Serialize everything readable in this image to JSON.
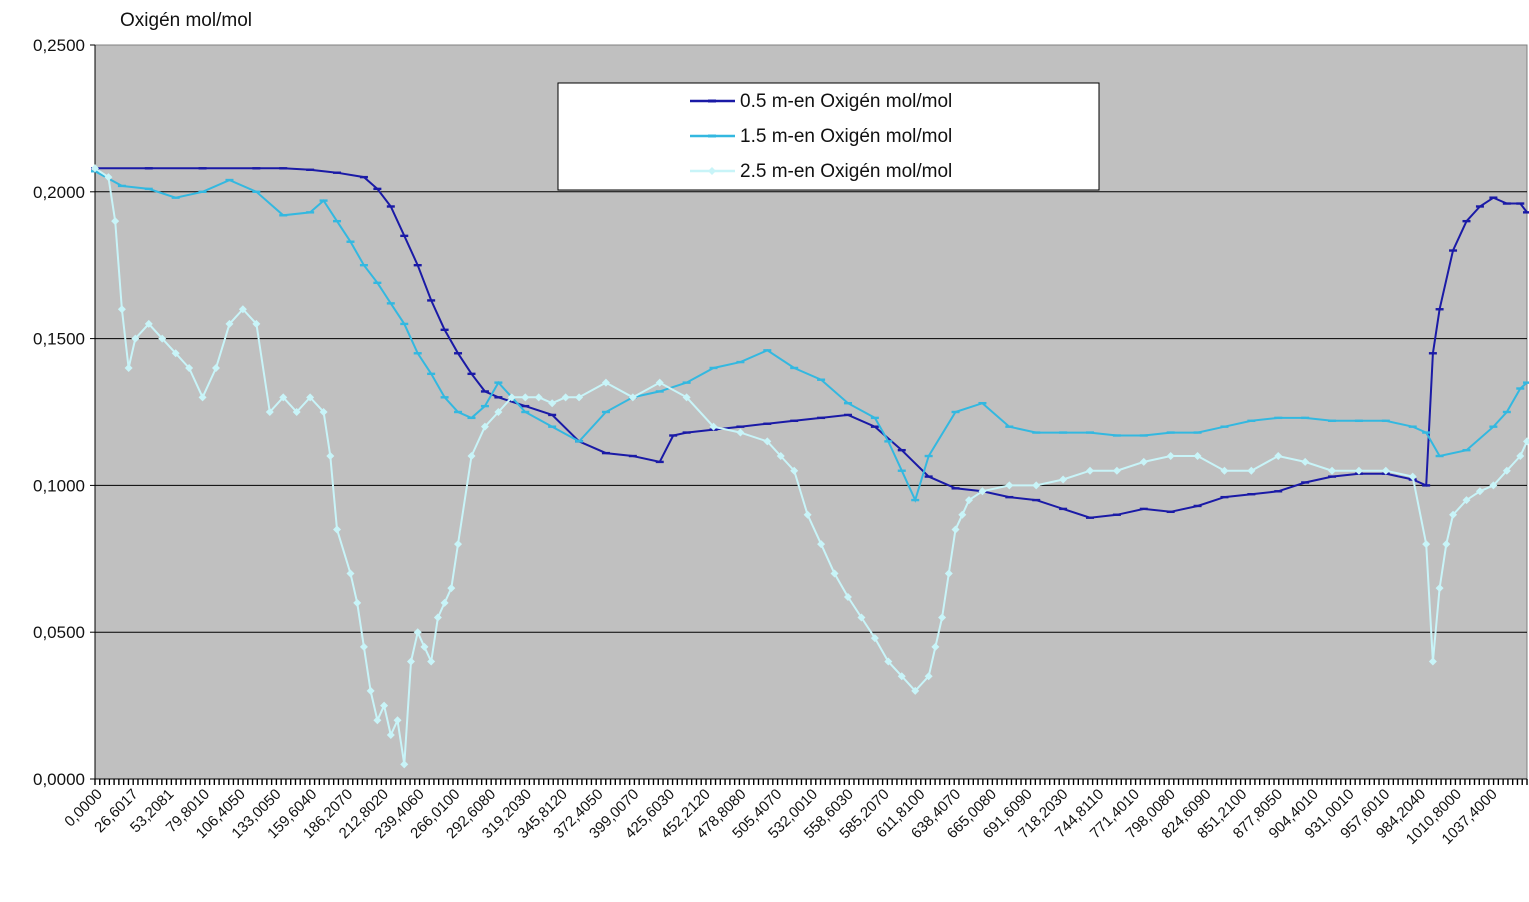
{
  "chart_data": {
    "type": "line",
    "ylabel": "Oxigén mol/mol",
    "ylim": [
      0,
      0.25
    ],
    "yticks": [
      "0,0000",
      "0,0500",
      "0,1000",
      "0,1500",
      "0,2000",
      "0,2500"
    ],
    "yticks_values": [
      0,
      0.05,
      0.1,
      0.15,
      0.2,
      0.25
    ],
    "xlim": [
      0,
      1065
    ],
    "xtick_labels": [
      "0,0000",
      "26,6017",
      "53,2081",
      "79,8010",
      "106,4050",
      "133,0050",
      "159,6040",
      "186,2070",
      "212,8020",
      "239,4060",
      "266,0100",
      "292,6080",
      "319,2030",
      "345,8120",
      "372,4050",
      "399,0070",
      "425,6030",
      "452,2120",
      "478,8080",
      "505,4070",
      "532,0010",
      "558,6030",
      "585,2070",
      "611,8100",
      "638,4070",
      "665,0080",
      "691,6090",
      "718,2030",
      "744,8110",
      "771,4010",
      "798,0080",
      "824,6090",
      "851,2100",
      "877,8050",
      "904,4010",
      "931,0010",
      "957,6010",
      "984,2040",
      "1010,8000",
      "1037,4000"
    ],
    "xtick_values": [
      0,
      26.6017,
      53.2081,
      79.801,
      106.405,
      133.005,
      159.604,
      186.207,
      212.802,
      239.406,
      266.01,
      292.608,
      319.203,
      345.812,
      372.405,
      399.007,
      425.603,
      452.212,
      478.808,
      505.407,
      532.001,
      558.603,
      585.207,
      611.81,
      638.407,
      665.008,
      691.609,
      718.203,
      744.811,
      771.401,
      798.008,
      824.609,
      851.21,
      877.805,
      904.401,
      931.001,
      957.601,
      984.204,
      1010.8,
      1037.4
    ],
    "grid": "horizontal",
    "legend_position": "top-center",
    "background": "#c0c0c0",
    "series": [
      {
        "name": "0.5 m-en Oxigén mol/mol",
        "color": "#1a1aa6",
        "x": [
          0,
          40,
          80,
          120,
          140,
          160,
          180,
          200,
          210,
          220,
          230,
          240,
          250,
          260,
          270,
          280,
          290,
          300,
          320,
          340,
          360,
          380,
          400,
          420,
          430,
          440,
          460,
          480,
          500,
          520,
          540,
          560,
          580,
          600,
          620,
          640,
          660,
          680,
          700,
          720,
          740,
          760,
          780,
          800,
          820,
          840,
          860,
          880,
          900,
          920,
          940,
          960,
          980,
          990,
          995,
          1000,
          1010,
          1020,
          1030,
          1040,
          1050,
          1060,
          1065
        ],
        "y": [
          0.208,
          0.208,
          0.208,
          0.208,
          0.208,
          0.2075,
          0.2065,
          0.205,
          0.201,
          0.195,
          0.185,
          0.175,
          0.163,
          0.153,
          0.145,
          0.138,
          0.132,
          0.13,
          0.127,
          0.124,
          0.115,
          0.111,
          0.11,
          0.108,
          0.117,
          0.118,
          0.119,
          0.12,
          0.121,
          0.122,
          0.123,
          0.124,
          0.12,
          0.112,
          0.103,
          0.099,
          0.098,
          0.096,
          0.095,
          0.092,
          0.089,
          0.09,
          0.092,
          0.091,
          0.093,
          0.096,
          0.097,
          0.098,
          0.101,
          0.103,
          0.104,
          0.104,
          0.102,
          0.1,
          0.145,
          0.16,
          0.18,
          0.19,
          0.195,
          0.198,
          0.196,
          0.196,
          0.193
        ]
      },
      {
        "name": "1.5 m-en Oxigén mol/mol",
        "color": "#33b8e0",
        "x": [
          0,
          20,
          40,
          60,
          80,
          100,
          120,
          140,
          160,
          170,
          180,
          190,
          200,
          210,
          220,
          230,
          240,
          250,
          260,
          270,
          280,
          290,
          300,
          320,
          340,
          360,
          380,
          400,
          420,
          440,
          460,
          480,
          500,
          520,
          540,
          560,
          580,
          590,
          600,
          610,
          620,
          640,
          660,
          680,
          700,
          720,
          740,
          760,
          780,
          800,
          820,
          840,
          860,
          880,
          900,
          920,
          940,
          960,
          980,
          990,
          1000,
          1020,
          1040,
          1050,
          1060,
          1065
        ],
        "y": [
          0.207,
          0.202,
          0.201,
          0.198,
          0.2,
          0.204,
          0.2,
          0.192,
          0.193,
          0.197,
          0.19,
          0.183,
          0.175,
          0.169,
          0.162,
          0.155,
          0.145,
          0.138,
          0.13,
          0.125,
          0.123,
          0.127,
          0.135,
          0.125,
          0.12,
          0.115,
          0.125,
          0.13,
          0.132,
          0.135,
          0.14,
          0.142,
          0.146,
          0.14,
          0.136,
          0.128,
          0.123,
          0.115,
          0.105,
          0.095,
          0.11,
          0.125,
          0.128,
          0.12,
          0.118,
          0.118,
          0.118,
          0.117,
          0.117,
          0.118,
          0.118,
          0.12,
          0.122,
          0.123,
          0.123,
          0.122,
          0.122,
          0.122,
          0.12,
          0.118,
          0.11,
          0.112,
          0.12,
          0.125,
          0.133,
          0.135
        ]
      },
      {
        "name": "2.5 m-en Oxigén mol/mol",
        "color": "#c8f4f8",
        "x": [
          0,
          10,
          15,
          20,
          25,
          30,
          40,
          50,
          60,
          70,
          80,
          90,
          100,
          110,
          120,
          130,
          140,
          150,
          160,
          170,
          175,
          180,
          190,
          195,
          200,
          205,
          210,
          215,
          220,
          225,
          230,
          235,
          240,
          245,
          250,
          255,
          260,
          265,
          270,
          280,
          290,
          300,
          310,
          320,
          330,
          340,
          350,
          360,
          380,
          400,
          420,
          440,
          460,
          480,
          500,
          510,
          520,
          530,
          540,
          550,
          560,
          570,
          580,
          590,
          600,
          610,
          620,
          625,
          630,
          635,
          640,
          645,
          650,
          660,
          680,
          700,
          720,
          740,
          760,
          780,
          800,
          820,
          840,
          860,
          880,
          900,
          920,
          940,
          960,
          980,
          990,
          995,
          1000,
          1005,
          1010,
          1020,
          1030,
          1040,
          1050,
          1060,
          1065
        ],
        "y": [
          0.208,
          0.205,
          0.19,
          0.16,
          0.14,
          0.15,
          0.155,
          0.15,
          0.145,
          0.14,
          0.13,
          0.14,
          0.155,
          0.16,
          0.155,
          0.125,
          0.13,
          0.125,
          0.13,
          0.125,
          0.11,
          0.085,
          0.07,
          0.06,
          0.045,
          0.03,
          0.02,
          0.025,
          0.015,
          0.02,
          0.005,
          0.04,
          0.05,
          0.045,
          0.04,
          0.055,
          0.06,
          0.065,
          0.08,
          0.11,
          0.12,
          0.125,
          0.13,
          0.13,
          0.13,
          0.128,
          0.13,
          0.13,
          0.135,
          0.13,
          0.135,
          0.13,
          0.12,
          0.118,
          0.115,
          0.11,
          0.105,
          0.09,
          0.08,
          0.07,
          0.062,
          0.055,
          0.048,
          0.04,
          0.035,
          0.03,
          0.035,
          0.045,
          0.055,
          0.07,
          0.085,
          0.09,
          0.095,
          0.098,
          0.1,
          0.1,
          0.102,
          0.105,
          0.105,
          0.108,
          0.11,
          0.11,
          0.105,
          0.105,
          0.11,
          0.108,
          0.105,
          0.105,
          0.105,
          0.103,
          0.08,
          0.04,
          0.065,
          0.08,
          0.09,
          0.095,
          0.098,
          0.1,
          0.105,
          0.11,
          0.115
        ]
      }
    ]
  }
}
